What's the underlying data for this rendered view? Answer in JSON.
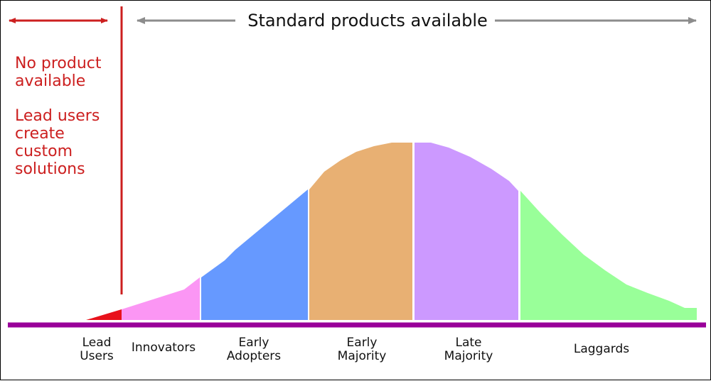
{
  "header": {
    "title": "Standard products available"
  },
  "notes": {
    "no_product_lines": [
      "No product",
      "available"
    ],
    "lead_users_lines": [
      "Lead users",
      "create",
      "custom",
      "solutions"
    ]
  },
  "categories": [
    {
      "lines": [
        "Lead",
        "Users"
      ],
      "color": "#e8121b"
    },
    {
      "lines": [
        "Innovators"
      ],
      "color": "#fb96f4"
    },
    {
      "lines": [
        "Early",
        "Adopters"
      ],
      "color": "#6699ff"
    },
    {
      "lines": [
        "Early",
        "Majority"
      ],
      "color": "#e8b073"
    },
    {
      "lines": [
        "Late",
        "Majority"
      ],
      "color": "#cc99ff"
    },
    {
      "lines": [
        "Laggards"
      ],
      "color": "#99ff99"
    }
  ],
  "colors": {
    "accent_red": "#cc1f1f",
    "arrow_gray": "#8c8c8c",
    "baseline": "#990099"
  }
}
